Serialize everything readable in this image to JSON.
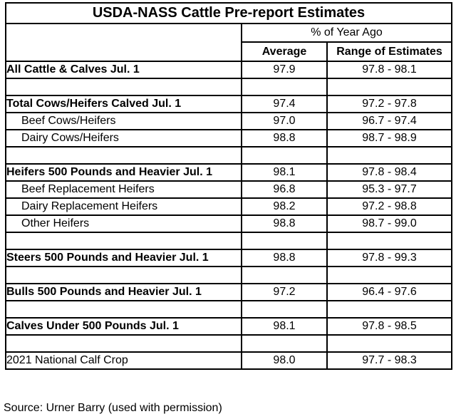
{
  "title": "USDA-NASS Cattle Pre-report Estimates",
  "table": {
    "group_header": "% of Year Ago",
    "columns": [
      "Average",
      "Range of Estimates"
    ],
    "rows": [
      {
        "label": "All Cattle & Calves Jul. 1",
        "style": "section",
        "average": "97.9",
        "range": "97.8 - 98.1"
      },
      {
        "empty": true
      },
      {
        "label": "Total Cows/Heifers Calved Jul. 1",
        "style": "section",
        "average": "97.4",
        "range": "97.2 - 97.8"
      },
      {
        "label": "Beef Cows/Heifers",
        "style": "sub",
        "average": "97.0",
        "range": "96.7 - 97.4"
      },
      {
        "label": "Dairy Cows/Heifers",
        "style": "sub",
        "average": "98.8",
        "range": "98.7 - 98.9"
      },
      {
        "empty": true
      },
      {
        "label": "Heifers 500 Pounds and Heavier Jul. 1",
        "style": "section",
        "average": "98.1",
        "range": "97.8 - 98.4"
      },
      {
        "label": "Beef Replacement Heifers",
        "style": "sub",
        "average": "96.8",
        "range": "95.3 - 97.7"
      },
      {
        "label": "Dairy Replacement Heifers",
        "style": "sub",
        "average": "98.2",
        "range": "97.2 - 98.8"
      },
      {
        "label": "Other Heifers",
        "style": "sub",
        "average": "98.8",
        "range": "98.7 - 99.0"
      },
      {
        "empty": true
      },
      {
        "label": "Steers 500 Pounds and Heavier Jul. 1",
        "style": "section",
        "average": "98.8",
        "range": "97.8 - 99.3"
      },
      {
        "empty": true
      },
      {
        "label": "Bulls 500 Pounds and Heavier Jul. 1",
        "style": "section",
        "average": "97.2",
        "range": "96.4 - 97.6"
      },
      {
        "empty": true
      },
      {
        "label": "Calves Under 500 Pounds Jul. 1",
        "style": "section",
        "average": "98.1",
        "range": "97.8 - 98.5"
      },
      {
        "empty": true
      },
      {
        "label": "2021 National Calf Crop",
        "style": "plain",
        "average": "98.0",
        "range": "97.7 - 98.3"
      }
    ]
  },
  "footer": {
    "source": "Source: Urner Barry (used with permission)"
  }
}
